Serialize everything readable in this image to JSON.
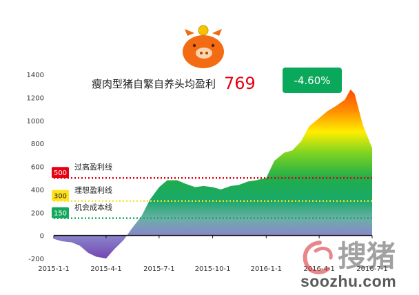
{
  "headline": {
    "title": "瘦肉型猪自繁自养头均盈利",
    "value": "769"
  },
  "change_badge": {
    "text": "-4.60%"
  },
  "watermark": {
    "cn": "搜猪",
    "site": "soozhu.com"
  },
  "colors": {
    "red_line": "#e60012",
    "yellow_line": "#ffe21a",
    "green_line": "#13a85b",
    "badge": "#0aa85a"
  },
  "icon": "piggy-bank-icon",
  "chart_data": {
    "type": "area",
    "title": "",
    "xlabel": "",
    "ylabel": "",
    "ylim": [
      -200,
      1400
    ],
    "yticks": [
      -200,
      0,
      200,
      400,
      600,
      800,
      1000,
      1200,
      1400
    ],
    "xticks": [
      "2015-1-1",
      "2015-4-1",
      "2015-7-1",
      "2015-10-1",
      "2016-1-1",
      "2016-4-1",
      "2016-7-1"
    ],
    "x_range": [
      "2015-1-1",
      "2016-7-1"
    ],
    "series": [
      {
        "x": [
          "2015-1-1",
          "2015-1-15",
          "2015-2-1",
          "2015-2-15",
          "2015-3-1",
          "2015-3-15",
          "2015-4-1",
          "2015-4-15",
          "2015-5-1",
          "2015-5-15",
          "2015-6-1",
          "2015-6-15",
          "2015-7-1",
          "2015-7-15",
          "2015-8-1",
          "2015-8-15",
          "2015-9-1",
          "2015-9-15",
          "2015-10-1",
          "2015-10-15",
          "2015-11-1",
          "2015-11-15",
          "2015-12-1",
          "2015-12-15",
          "2016-1-1",
          "2016-1-15",
          "2016-2-1",
          "2016-2-15",
          "2016-3-1",
          "2016-3-15",
          "2016-4-1",
          "2016-4-15",
          "2016-5-1",
          "2016-5-15",
          "2016-5-25",
          "2016-6-1",
          "2016-6-15",
          "2016-7-1"
        ],
        "values": [
          -30,
          -50,
          -60,
          -90,
          -150,
          -185,
          -200,
          -120,
          -40,
          60,
          170,
          310,
          420,
          480,
          480,
          450,
          420,
          430,
          420,
          400,
          430,
          440,
          470,
          480,
          500,
          650,
          720,
          740,
          820,
          950,
          1020,
          1080,
          1130,
          1180,
          1270,
          1230,
          960,
          760
        ]
      }
    ],
    "reference_lines": [
      {
        "value": 500,
        "badge": "500",
        "label": "过高盈利线",
        "color": "#e60012"
      },
      {
        "value": 300,
        "badge": "300",
        "label": "理想盈利线",
        "color": "#ffe21a"
      },
      {
        "value": 150,
        "badge": "150",
        "label": "机会成本线",
        "color": "#13a85b"
      }
    ]
  }
}
